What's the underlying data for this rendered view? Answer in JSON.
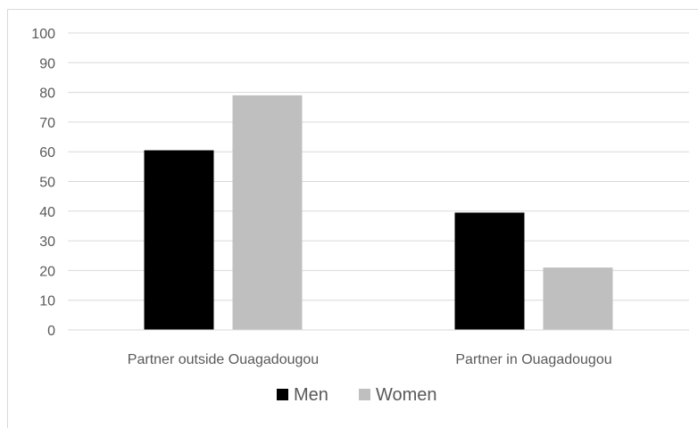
{
  "chart_data": {
    "type": "bar",
    "categories": [
      "Partner outside Ouagadougou",
      "Partner in Ouagadougou"
    ],
    "series": [
      {
        "name": "Men",
        "values": [
          60.5,
          39.5
        ],
        "color": "#000000"
      },
      {
        "name": "Women",
        "values": [
          79,
          21
        ],
        "color": "#bfbfbf"
      }
    ],
    "ylim": [
      0,
      100
    ],
    "yticks": [
      0,
      10,
      20,
      30,
      40,
      50,
      60,
      70,
      80,
      90,
      100
    ],
    "grid": true,
    "legend_position": "bottom",
    "title": "",
    "xlabel": "",
    "ylabel": ""
  }
}
